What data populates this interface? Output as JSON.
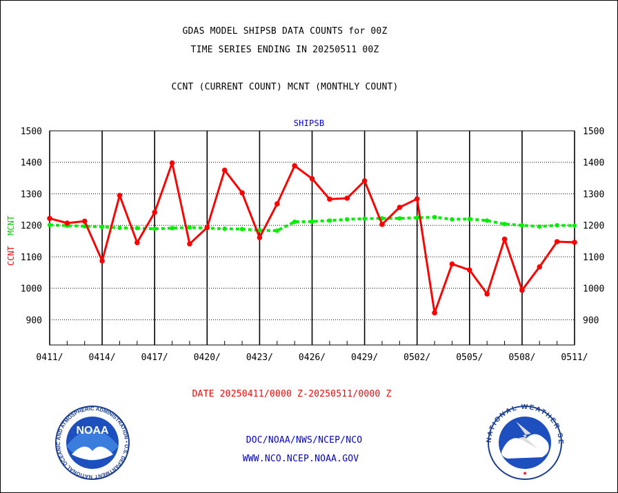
{
  "header": {
    "title_line1": "GDAS MODEL SHIPSB DATA COUNTS for 00Z",
    "title_line2": "TIME SERIES ENDING IN 20250511 00Z",
    "subtitle": "CCNT (CURRENT COUNT) MCNT (MONTHLY COUNT)",
    "panel_label": "SHIPSB",
    "ylabel_ccnt": "CCNT",
    "ylabel_mcnt": "MCNT"
  },
  "footer": {
    "date_range": "DATE 20250411/0000 Z-20250511/0000 Z",
    "org_path": "DOC/NOAA/NWS/NCEP/NCO",
    "website": "WWW.NCO.NCEP.NOAA.GOV"
  },
  "logos": {
    "noaa_logo_text": "NOAA",
    "noaa_ring_text": "NATIONAL OCEANIC AND ATMOSPHERIC ADMINISTRATION • U.S. DEPARTMENT OF COMMERCE •",
    "nws_ring_text": "NATIONAL WEATHER SERVICE"
  },
  "colors": {
    "ccnt": "#ff0000",
    "mcnt": "#00ee00",
    "text_blue": "#0000cc",
    "date_red": "#ff0000"
  },
  "chart_data": {
    "type": "line",
    "x_tick_labels": [
      "0411/",
      "0414/",
      "0417/",
      "0420/",
      "0423/",
      "0426/",
      "0429/",
      "0502/",
      "0505/",
      "0508/",
      "0511/"
    ],
    "y_tick_labels": [
      "900",
      "1000",
      "1100",
      "1200",
      "1300",
      "1400",
      "1500"
    ],
    "ylim": [
      820,
      1500
    ],
    "xlim": [
      0,
      30
    ],
    "grid": true,
    "series": [
      {
        "name": "CCNT",
        "style": "solid",
        "values": [
          1222,
          1207,
          1213,
          1087,
          1295,
          1145,
          1241,
          1398,
          1141,
          1193,
          1375,
          1303,
          1161,
          1268,
          1389,
          1348,
          1283,
          1286,
          1341,
          1203,
          1257,
          1284,
          922,
          1077,
          1058,
          982,
          1156,
          994,
          1068,
          1148,
          1146
        ]
      },
      {
        "name": "MCNT",
        "style": "dashed",
        "values": [
          1201,
          1199,
          1197,
          1195,
          1192,
          1191,
          1189,
          1191,
          1193,
          1191,
          1189,
          1188,
          1184,
          1183,
          1211,
          1212,
          1215,
          1219,
          1221,
          1222,
          1222,
          1224,
          1226,
          1219,
          1220,
          1215,
          1204,
          1200,
          1196,
          1200,
          1199
        ]
      }
    ]
  }
}
